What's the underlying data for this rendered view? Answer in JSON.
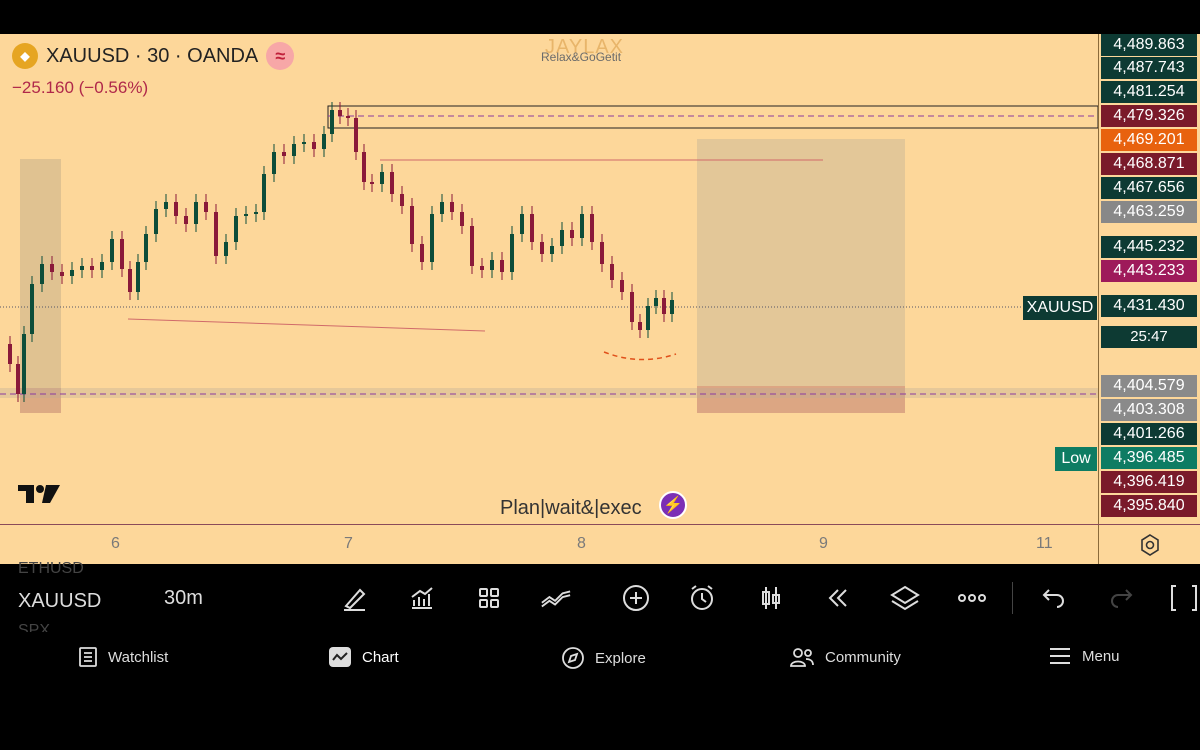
{
  "header": {
    "symbol_title": "XAUUSD · 30 · OANDA",
    "change": "−25.160 (−0.56%)",
    "watermark_title": "JAYLAX",
    "watermark_sub": "Relax&GoGetit",
    "logo_text": "TV"
  },
  "chart": {
    "caption": "Plan|wait&|exec",
    "symbol_badge": "XAUUSD",
    "low_badge": "Low",
    "countdown": "25:47",
    "time_labels": [
      "6",
      "7",
      "8",
      "9",
      "11"
    ]
  },
  "price_labels": [
    {
      "value": "4,489.863",
      "color": "#0d3a33"
    },
    {
      "value": "4,487.743",
      "color": "#0d3a33"
    },
    {
      "value": "4,481.254",
      "color": "#0d3a33"
    },
    {
      "value": "4,479.326",
      "color": "#7a1a2a"
    },
    {
      "value": "4,469.201",
      "color": "#e8620e"
    },
    {
      "value": "4,468.871",
      "color": "#7a1a2a"
    },
    {
      "value": "4,467.656",
      "color": "#0d3a33"
    },
    {
      "value": "4,463.259",
      "color": "#888888"
    },
    {
      "value": "4,445.232",
      "color": "#0d3a33"
    },
    {
      "value": "4,443.233",
      "color": "#9e1a5a"
    },
    {
      "value": "4,431.430",
      "color": "#0d3a33"
    },
    {
      "value": "4,404.579",
      "color": "#8a8a8a"
    },
    {
      "value": "4,403.308",
      "color": "#8a8a8a"
    },
    {
      "value": "4,401.266",
      "color": "#0d3a33"
    },
    {
      "value": "4,396.485",
      "color": "#0e7c63"
    },
    {
      "value": "4,396.419",
      "color": "#7a1a2a"
    },
    {
      "value": "4,395.840",
      "color": "#7a1a2a"
    }
  ],
  "toolbar": {
    "prev_symbol": "ETHUSD",
    "symbol": "XAUUSD",
    "next_symbol": "SPX",
    "interval": "30m",
    "tools": [
      "brush-icon",
      "chart-up-icon",
      "grid-icon",
      "trend-icon",
      "plus-circle-icon",
      "alarm-icon",
      "candles-icon",
      "rewind-icon",
      "layers-icon",
      "more-icon",
      "undo-icon",
      "redo-icon",
      "fullscreen-icon"
    ]
  },
  "nav": {
    "items": [
      {
        "label": "Watchlist",
        "icon": "watchlist-icon"
      },
      {
        "label": "Chart",
        "icon": "chart-icon"
      },
      {
        "label": "Explore",
        "icon": "compass-icon"
      },
      {
        "label": "Community",
        "icon": "community-icon"
      },
      {
        "label": "Menu",
        "icon": "menu-icon"
      }
    ]
  }
}
